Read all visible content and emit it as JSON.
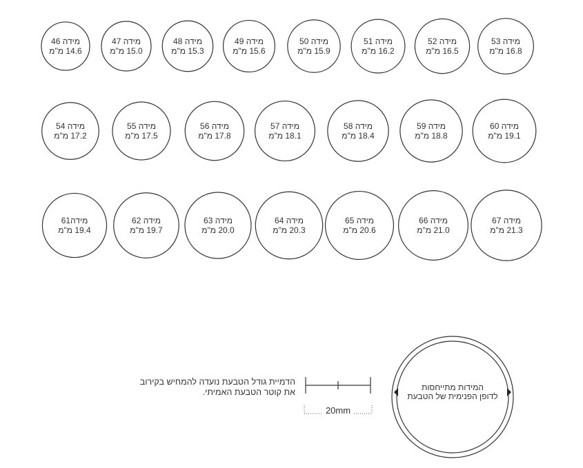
{
  "rows": [
    [
      {
        "size_label": "מידה 46",
        "diameter_label": "14.6 מ\"מ",
        "diameter_mm": 14.6
      },
      {
        "size_label": "מידה 47",
        "diameter_label": "15.0 מ\"מ",
        "diameter_mm": 15.0
      },
      {
        "size_label": "מידה 48",
        "diameter_label": "15.3 מ\"מ",
        "diameter_mm": 15.3
      },
      {
        "size_label": "מידה 49",
        "diameter_label": "15.6 מ\"מ",
        "diameter_mm": 15.6
      },
      {
        "size_label": "מידה 50",
        "diameter_label": "15.9 מ\"מ",
        "diameter_mm": 15.9
      },
      {
        "size_label": "מידה 51",
        "diameter_label": "16.2 מ\"מ",
        "diameter_mm": 16.2
      },
      {
        "size_label": "מידה 52",
        "diameter_label": "16.5 מ\"מ",
        "diameter_mm": 16.5
      },
      {
        "size_label": "מידה 53",
        "diameter_label": "16.8 מ\"מ",
        "diameter_mm": 16.8
      }
    ],
    [
      {
        "size_label": "מידה 54",
        "diameter_label": "17.2 מ\"מ",
        "diameter_mm": 17.2
      },
      {
        "size_label": "מידה 55",
        "diameter_label": "17.5 מ\"מ",
        "diameter_mm": 17.5
      },
      {
        "size_label": "מידה 56",
        "diameter_label": "17.8 מ\"מ",
        "diameter_mm": 17.8
      },
      {
        "size_label": "מידה 57",
        "diameter_label": "18.1 מ\"מ",
        "diameter_mm": 18.1
      },
      {
        "size_label": "מידה 58",
        "diameter_label": "18.4 מ\"מ",
        "diameter_mm": 18.4
      },
      {
        "size_label": "מידה 59",
        "diameter_label": "18.8 מ\"מ",
        "diameter_mm": 18.8
      },
      {
        "size_label": "מידה 60",
        "diameter_label": "19.1 מ\"מ",
        "diameter_mm": 19.1
      }
    ],
    [
      {
        "size_label": "מידה61",
        "diameter_label": "19.4 מ\"מ",
        "diameter_mm": 19.4
      },
      {
        "size_label": "מידה 62",
        "diameter_label": "19.7 מ\"מ",
        "diameter_mm": 19.7
      },
      {
        "size_label": "מידה 63",
        "diameter_label": "20.0 מ\"מ",
        "diameter_mm": 20.0
      },
      {
        "size_label": "מידה 64",
        "diameter_label": "20.3 מ\"מ",
        "diameter_mm": 20.3
      },
      {
        "size_label": "מידה 65",
        "diameter_label": "20.6 מ\"מ",
        "diameter_mm": 20.6
      },
      {
        "size_label": "מידה 66",
        "diameter_label": "21.0 מ\"מ",
        "diameter_mm": 21.0
      },
      {
        "size_label": "מידה 67",
        "diameter_label": "21.3 מ\"מ",
        "diameter_mm": 21.3
      }
    ]
  ],
  "note": {
    "line1": "הדמיית גודל הטבעת נועדה להמחיש בקירוב",
    "line2": "את קוטר הטבעת האמיתי."
  },
  "ruler": {
    "label": "20mm",
    "length_mm": 20
  },
  "legend_ring": {
    "line1": "המידות מתייחסות",
    "line2": "לדופן הפנימית של הטבעת"
  },
  "colors": {
    "stroke": "#333333",
    "text": "#333333"
  }
}
